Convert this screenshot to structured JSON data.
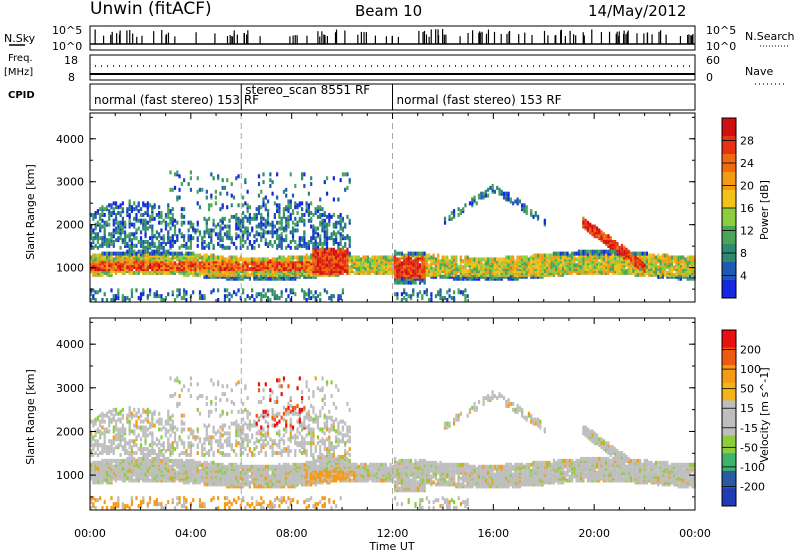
{
  "header": {
    "station": "Unwin (fitACF)",
    "beam": "Beam 10",
    "date": "14/May/2012"
  },
  "left_labels": {
    "nsky": "N.Sky",
    "freq": "Freq.",
    "freq_unit": "[MHz]",
    "cpid": "CPID"
  },
  "right_labels": {
    "nsearch": "N.Search",
    "nave": "Nave"
  },
  "top_strip_ticks": {
    "left_top": "10^5",
    "left_bottom": "10^0",
    "right_top": "10^5",
    "right_bottom": "10^0"
  },
  "freq_ticks": {
    "left_top": "18",
    "left_bottom": "8",
    "right_top": "60",
    "right_bottom": "0"
  },
  "cpid_segments": [
    {
      "label": "normal (fast stereo) 153 RF",
      "start": "00:00",
      "end": "06:00"
    },
    {
      "label": "stereo_scan 8551 RF",
      "start": "06:00",
      "end": "12:00"
    },
    {
      "label": "normal (fast stereo) 153 RF",
      "start": "12:00",
      "end": "24:00"
    }
  ],
  "colors": {
    "power_scale": [
      "#1428e0",
      "#1e5ab4",
      "#2e8a6e",
      "#4aa45a",
      "#8ccd3c",
      "#f2c21a",
      "#f59a14",
      "#f06a10",
      "#e43212",
      "#d01010"
    ],
    "velocity_scale": [
      "#e81010",
      "#ee5a10",
      "#f59a14",
      "#f2b41a",
      "#bebebe",
      "#bebebe",
      "#8ccd3c",
      "#3cb46e",
      "#2a5aa4",
      "#1e3cb4"
    ]
  },
  "power_colorbar": {
    "label": "Power [dB]",
    "ticks": [
      "28",
      "24",
      "20",
      "16",
      "12",
      "8",
      "4"
    ]
  },
  "velocity_colorbar": {
    "label": "Velocity [m s^-1]",
    "ticks": [
      "200",
      "100",
      "50",
      "15",
      "-15",
      "-50",
      "-100",
      "-200"
    ]
  },
  "chart_data": {
    "type": "heatmap",
    "panels": [
      {
        "name": "power",
        "ylabel": "Slant Range [km]",
        "yticks": [
          "1000",
          "2000",
          "3000",
          "4000"
        ],
        "ylim": [
          200,
          4600
        ],
        "clabel": "Power [dB]",
        "clim": [
          0,
          30
        ]
      },
      {
        "name": "velocity",
        "ylabel": "Slant Range [km]",
        "yticks": [
          "1000",
          "2000",
          "3000",
          "4000"
        ],
        "ylim": [
          200,
          4600
        ],
        "clabel": "Velocity [m s^-1]",
        "clim": [
          -250,
          250
        ]
      }
    ],
    "xlabel": "Time UT",
    "xticks": [
      "00:00",
      "04:00",
      "08:00",
      "12:00",
      "16:00",
      "20:00",
      "00:00"
    ],
    "xlim": [
      0,
      24
    ],
    "mode_change_times_hours": [
      6,
      12
    ]
  }
}
